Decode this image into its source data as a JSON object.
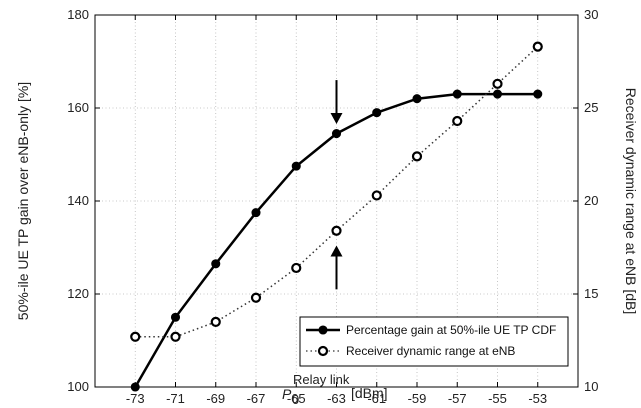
{
  "chart_data": {
    "type": "line",
    "x": [
      -73,
      -71,
      -69,
      -67,
      -65,
      -63,
      -61,
      -59,
      -57,
      -55,
      -53
    ],
    "xlabel_main": "P",
    "xlabel_sub": "0",
    "xlabel_sup": "Relay link",
    "xlabel_unit": "[dBm]",
    "ylabel_left": "50%-ile UE TP gain over eNB-only [%]",
    "ylabel_right": "Receiver dynamic range at eNB [dB]",
    "xlim": [
      -75,
      -51
    ],
    "ylim_left": [
      100,
      180
    ],
    "ylim_right": [
      10,
      30
    ],
    "x_ticks": [
      "-73",
      "-71",
      "-69",
      "-67",
      "-65",
      "-63",
      "-61",
      "-59",
      "-57",
      "-55",
      "-53"
    ],
    "y_left_ticks": [
      "100",
      "120",
      "140",
      "160",
      "180"
    ],
    "y_right_ticks": [
      "10",
      "15",
      "20",
      "25",
      "30"
    ],
    "grid": true,
    "legend_position": "lower-right",
    "series": [
      {
        "name": "Percentage gain at 50%-ile UE TP CDF",
        "axis": "left",
        "style": "solid",
        "color": "#000000",
        "values": [
          100,
          115,
          126.5,
          137.5,
          147.5,
          154.5,
          159,
          162,
          163,
          163,
          163
        ]
      },
      {
        "name": "Receiver dynamic range at eNB",
        "axis": "right",
        "style": "dotted",
        "color": "#333333",
        "values": [
          12.7,
          12.7,
          13.5,
          14.8,
          16.4,
          18.4,
          20.3,
          22.4,
          24.3,
          26.3,
          28.3
        ]
      }
    ],
    "annotations": [
      {
        "type": "arrow-down",
        "x": -63,
        "y_left": 166,
        "y_left_end": 157
      },
      {
        "type": "arrow-up",
        "x": -63,
        "y_left": 121,
        "y_left_end": 130
      }
    ]
  }
}
